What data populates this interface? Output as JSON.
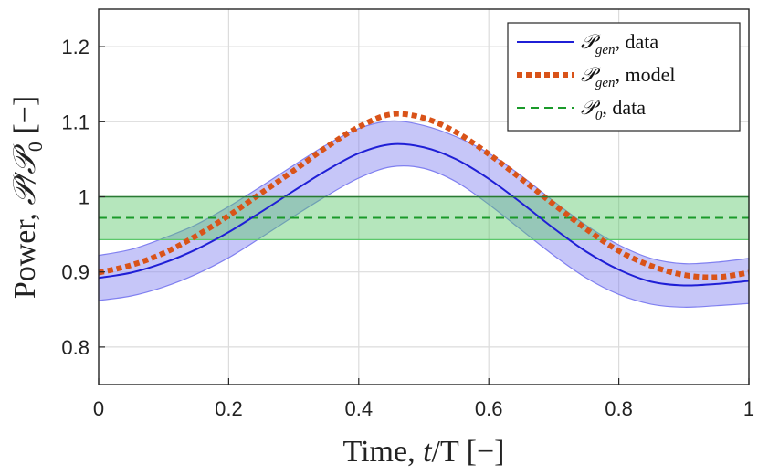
{
  "chart_data": {
    "type": "line",
    "title": "",
    "xlabel": "Time, t/T [−]",
    "ylabel": "Power, 𝒫/𝒫₀ [−]",
    "xlim": [
      0,
      1
    ],
    "ylim": [
      0.75,
      1.25
    ],
    "xticks": [
      0,
      0.2,
      0.4,
      0.6,
      0.8,
      1
    ],
    "xtick_labels": [
      "0",
      "0.2",
      "0.4",
      "0.6",
      "0.8",
      "1"
    ],
    "yticks": [
      0.8,
      0.9,
      1.0,
      1.1,
      1.2
    ],
    "ytick_labels": [
      "0.8",
      "0.9",
      "1",
      "1.1",
      "1.2"
    ],
    "grid": true,
    "legend_position": "top-right",
    "x": [
      0,
      0.05,
      0.1,
      0.15,
      0.2,
      0.25,
      0.3,
      0.35,
      0.4,
      0.45,
      0.5,
      0.55,
      0.6,
      0.65,
      0.7,
      0.75,
      0.8,
      0.85,
      0.9,
      0.95,
      1.0
    ],
    "series": [
      {
        "name": "𝒫_gen, data",
        "legend_main": "𝒫",
        "legend_sub": "gen",
        "legend_rest": ", data",
        "style": "solid",
        "color": "#1f1fd6",
        "values": [
          0.892,
          0.899,
          0.912,
          0.93,
          0.953,
          0.98,
          1.008,
          1.035,
          1.058,
          1.07,
          1.066,
          1.05,
          1.024,
          0.992,
          0.958,
          0.927,
          0.903,
          0.887,
          0.882,
          0.884,
          0.888
        ],
        "band_lower": [
          0.862,
          0.868,
          0.88,
          0.897,
          0.919,
          0.946,
          0.974,
          1.001,
          1.025,
          1.04,
          1.038,
          1.02,
          0.99,
          0.956,
          0.922,
          0.892,
          0.87,
          0.857,
          0.853,
          0.855,
          0.858
        ],
        "band_upper": [
          0.922,
          0.93,
          0.945,
          0.963,
          0.987,
          1.014,
          1.042,
          1.069,
          1.091,
          1.101,
          1.095,
          1.08,
          1.058,
          1.028,
          0.994,
          0.962,
          0.936,
          0.918,
          0.911,
          0.913,
          0.918
        ],
        "band_color": "#8080f0"
      },
      {
        "name": "𝒫_gen, model",
        "legend_main": "𝒫",
        "legend_sub": "gen",
        "legend_rest": ", model",
        "style": "dotted",
        "color": "#d95319",
        "values": [
          0.899,
          0.909,
          0.925,
          0.948,
          0.975,
          1.005,
          1.035,
          1.066,
          1.093,
          1.11,
          1.105,
          1.086,
          1.057,
          1.024,
          0.99,
          0.957,
          0.928,
          0.908,
          0.896,
          0.893,
          0.899
        ]
      },
      {
        "name": "𝒫₀, data",
        "legend_main": "𝒫",
        "legend_sub": "0",
        "legend_rest": ", data",
        "style": "dashed",
        "color": "#1a9a2a",
        "values": [
          0.972,
          0.972,
          0.972,
          0.972,
          0.972,
          0.972,
          0.972,
          0.972,
          0.972,
          0.972,
          0.972,
          0.972,
          0.972,
          0.972,
          0.972,
          0.972,
          0.972,
          0.972,
          0.972,
          0.972,
          0.972
        ],
        "band_lower": [
          0.943,
          0.943,
          0.943,
          0.943,
          0.943,
          0.943,
          0.943,
          0.943,
          0.943,
          0.943,
          0.943,
          0.943,
          0.943,
          0.943,
          0.943,
          0.943,
          0.943,
          0.943,
          0.943,
          0.943,
          0.943
        ],
        "band_upper": [
          1.0,
          1.0,
          1.0,
          1.0,
          1.0,
          1.0,
          1.0,
          1.0,
          1.0,
          1.0,
          1.0,
          1.0,
          1.0,
          1.0,
          1.0,
          1.0,
          1.0,
          1.0,
          1.0,
          1.0,
          1.0
        ],
        "band_color": "#5cc86a"
      }
    ]
  },
  "axis_text": {
    "xlabel_prefix": "Time, ",
    "xlabel_var": "t",
    "xlabel_suffix": "/T [−]",
    "ylabel_prefix": "Power, ",
    "ylabel_var": "𝒫",
    "ylabel_mid": "/𝒫",
    "ylabel_sub": "0",
    "ylabel_suffix": " [−]"
  }
}
